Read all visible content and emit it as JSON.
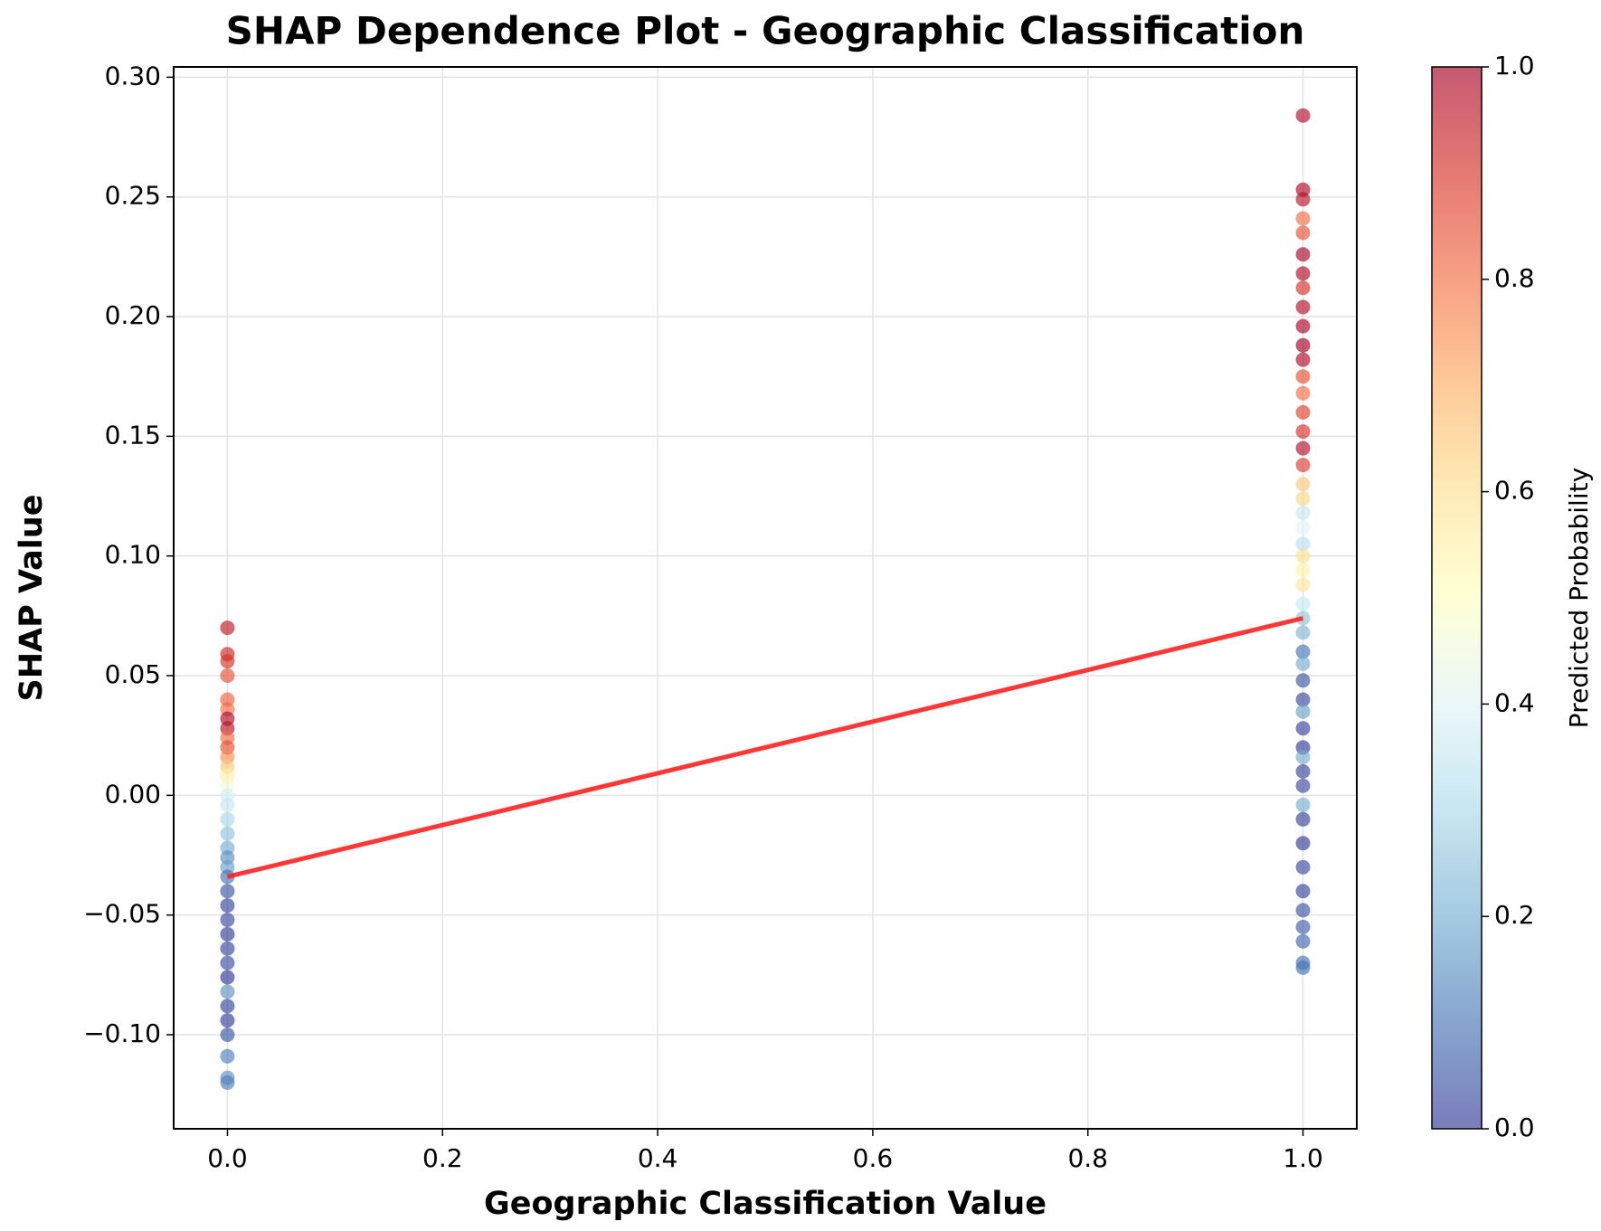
{
  "chart_data": {
    "type": "scatter",
    "title": "SHAP Dependence Plot - Geographic Classification",
    "xlabel": "Geographic Classification Value",
    "ylabel": "SHAP Value",
    "colorbar_label": "Predicted Probability",
    "colormap": [
      "#313695",
      "#4575b4",
      "#74add1",
      "#abd9e9",
      "#e0f3f8",
      "#ffffbf",
      "#fee090",
      "#fdae61",
      "#f46d43",
      "#d73027",
      "#a50026"
    ],
    "clim": [
      0,
      1
    ],
    "cticks": [
      {
        "value": 0,
        "label": "0.0"
      },
      0.2,
      0.4,
      0.6,
      0.8,
      {
        "value": 1,
        "label": "1.0"
      }
    ],
    "xlim": [
      -0.05,
      1.05
    ],
    "ylim": [
      -0.1393,
      0.3043
    ],
    "xticks": [
      {
        "value": 0,
        "label": "0.0"
      },
      0.2,
      0.4,
      0.6,
      0.8,
      {
        "value": 1,
        "label": "1.0"
      }
    ],
    "yticks": [
      {
        "value": -0.1,
        "label": "−0.10"
      },
      {
        "value": -0.05,
        "label": "−0.05"
      },
      {
        "value": 0,
        "label": "0.00"
      },
      0.05,
      {
        "value": 0.1,
        "label": "0.10"
      },
      0.15,
      {
        "value": 0.2,
        "label": "0.20"
      },
      0.25,
      {
        "value": 0.3,
        "label": "0.30"
      }
    ],
    "grid": true,
    "x": [
      0,
      0,
      0,
      0,
      0,
      0,
      0,
      0,
      0,
      0,
      0,
      0,
      0,
      0,
      0,
      0,
      0,
      0,
      0,
      0,
      0,
      0,
      0,
      0,
      0,
      0,
      0,
      0,
      0,
      0,
      0,
      0,
      0,
      0,
      0,
      0,
      1,
      1,
      1,
      1,
      1,
      1,
      1,
      1,
      1,
      1,
      1,
      1,
      1,
      1,
      1,
      1,
      1,
      1,
      1,
      1,
      1,
      1,
      1,
      1,
      1,
      1,
      1,
      1,
      1,
      1,
      1,
      1,
      1,
      1,
      1,
      1,
      1,
      1,
      1,
      1,
      1,
      1,
      1,
      1,
      1,
      1,
      1,
      1,
      1
    ],
    "y": [
      0.07,
      0.059,
      0.056,
      0.05,
      0.04,
      0.036,
      0.032,
      0.028,
      0.024,
      0.02,
      0.016,
      0.012,
      0.008,
      0.004,
      0.0,
      -0.004,
      -0.01,
      -0.016,
      -0.022,
      -0.026,
      -0.03,
      -0.034,
      -0.04,
      -0.046,
      -0.052,
      -0.058,
      -0.064,
      -0.07,
      -0.076,
      -0.082,
      -0.088,
      -0.094,
      -0.1,
      -0.109,
      -0.118,
      -0.12,
      0.284,
      0.253,
      0.249,
      0.241,
      0.235,
      0.226,
      0.218,
      0.212,
      0.204,
      0.196,
      0.188,
      0.182,
      0.175,
      0.168,
      0.16,
      0.152,
      0.145,
      0.138,
      0.13,
      0.124,
      0.118,
      0.112,
      0.105,
      0.1,
      0.094,
      0.088,
      0.08,
      0.074,
      0.068,
      0.06,
      0.055,
      0.048,
      0.04,
      0.035,
      0.028,
      0.02,
      0.016,
      0.01,
      0.004,
      -0.004,
      -0.01,
      -0.02,
      -0.03,
      -0.04,
      -0.048,
      -0.055,
      -0.061,
      -0.07,
      -0.072
    ],
    "color_values": [
      0.95,
      0.92,
      0.9,
      0.85,
      0.82,
      0.8,
      0.98,
      0.96,
      0.8,
      0.85,
      0.75,
      0.65,
      0.55,
      0.45,
      0.38,
      0.35,
      0.3,
      0.25,
      0.2,
      0.15,
      0.18,
      0.1,
      0.05,
      0.02,
      0.03,
      0.01,
      0.02,
      0.04,
      0.0,
      0.15,
      0.02,
      0.01,
      0.05,
      0.12,
      0.15,
      0.12,
      0.97,
      0.98,
      0.96,
      0.8,
      0.85,
      0.99,
      0.98,
      0.9,
      0.97,
      0.99,
      1.0,
      0.98,
      0.85,
      0.8,
      0.87,
      0.9,
      0.97,
      0.88,
      0.65,
      0.62,
      0.35,
      0.4,
      0.33,
      0.6,
      0.55,
      0.58,
      0.35,
      0.25,
      0.22,
      0.1,
      0.2,
      0.05,
      0.03,
      0.18,
      0.02,
      0.01,
      0.2,
      0.02,
      0.03,
      0.2,
      0.02,
      0.01,
      0.03,
      0.02,
      0.05,
      0.06,
      0.08,
      0.1,
      0.1
    ],
    "trend": {
      "x": [
        0,
        1
      ],
      "y": [
        -0.034,
        0.074
      ],
      "color": "#ff2020"
    }
  }
}
